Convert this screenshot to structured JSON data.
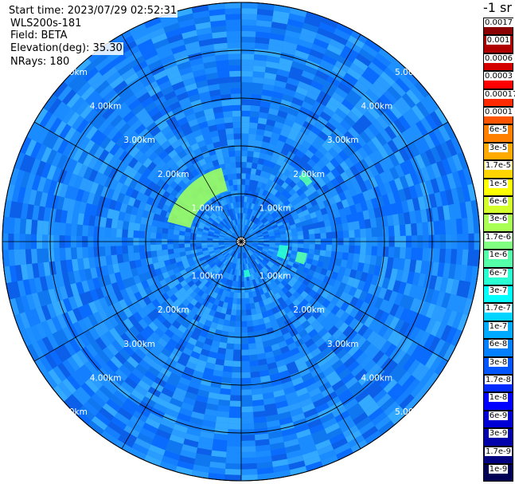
{
  "header": {
    "start_time": "Start time: 2023/07/29 02:52:31",
    "instrument": "WLS200s-181",
    "field": "Field: BETA",
    "elevation": "Elevation(deg): 35.30",
    "nrays": "NRays: 180"
  },
  "colorbar": {
    "unit": "-1 sr",
    "ticks": [
      "0.0017",
      "0.001",
      "0.0006",
      "0.0003",
      "0.00017",
      "0.0001",
      "6e-5",
      "3e-5",
      "1.7e-5",
      "1e-5",
      "6e-6",
      "3e-6",
      "1.7e-6",
      "1e-6",
      "6e-7",
      "3e-7",
      "1.7e-7",
      "1e-7",
      "6e-8",
      "3e-8",
      "1.7e-8",
      "1e-8",
      "6e-9",
      "3e-9",
      "1.7e-9",
      "1e-9"
    ],
    "colors": [
      "#8b0000",
      "#b00000",
      "#d40000",
      "#ff0000",
      "#ff2a00",
      "#ff5500",
      "#ff8000",
      "#ffaa00",
      "#ffd400",
      "#ffff00",
      "#d4ff2a",
      "#aaff55",
      "#80ff80",
      "#55ffaa",
      "#2affd4",
      "#00ffff",
      "#00d4ff",
      "#00aaff",
      "#0080ff",
      "#0055ff",
      "#002aff",
      "#0000ff",
      "#0000d4",
      "#0000aa",
      "#000080",
      "#000055"
    ]
  },
  "chart_data": {
    "type": "heatmap",
    "projection": "polar (PPI scan)",
    "field": "BETA",
    "elevation_deg": 35.3,
    "n_rays": 180,
    "range_rings_km": [
      1,
      2,
      3,
      4,
      5
    ],
    "ring_labels": [
      "1.00km",
      "2.00km",
      "3.00km",
      "4.00km",
      "5.00km"
    ],
    "max_range_km": 5.0,
    "spokes_deg": [
      0,
      30,
      60,
      90,
      120,
      150,
      180,
      210,
      240,
      270,
      300,
      330
    ],
    "background_beta_range": [
      1e-08,
      6e-08
    ],
    "features": [
      {
        "desc": "enhanced return arc NW",
        "azimuth_deg": [
          285,
          345
        ],
        "range_km": [
          1.1,
          1.6
        ],
        "beta": 1.7e-06
      },
      {
        "desc": "enhanced return NE",
        "azimuth_deg": [
          42,
          50
        ],
        "range_km": [
          1.8,
          1.95
        ],
        "beta": 1e-06
      },
      {
        "desc": "enhanced return E",
        "azimuth_deg": [
          95,
          112
        ],
        "range_km": [
          0.8,
          1.0
        ],
        "beta": 6e-07
      },
      {
        "desc": "enhanced return E-SE",
        "azimuth_deg": [
          100,
          110
        ],
        "range_km": [
          1.2,
          1.4
        ],
        "beta": 1e-06
      },
      {
        "desc": "enhanced return S",
        "azimuth_deg": [
          165,
          175
        ],
        "range_km": [
          0.6,
          0.75
        ],
        "beta": 6e-07
      }
    ]
  }
}
